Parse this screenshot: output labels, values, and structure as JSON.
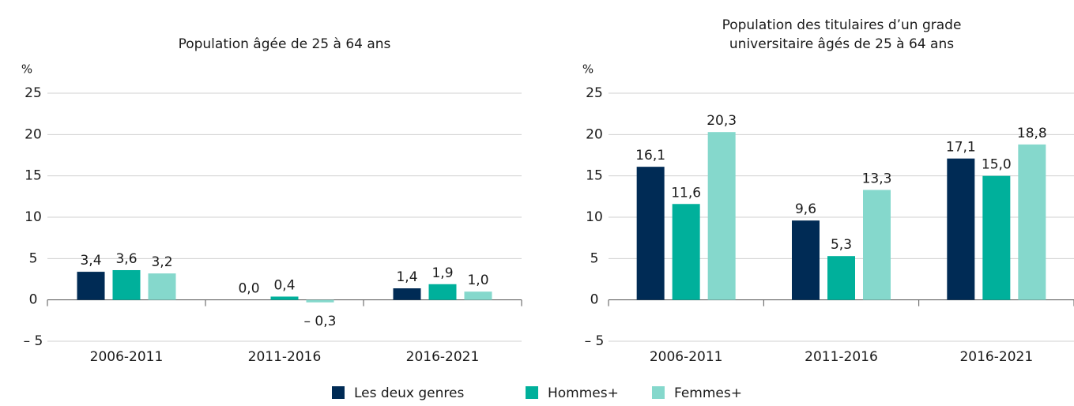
{
  "chart_data": [
    {
      "type": "bar",
      "title": [
        "Population âgée de 25 à 64 ans"
      ],
      "y_label": "%",
      "categories": [
        "2006-2011",
        "2011-2016",
        "2016-2021"
      ],
      "series": [
        {
          "name": "Les deux genres",
          "color": "#002b55",
          "values": [
            3.4,
            0.0,
            1.4
          ],
          "value_labels": [
            "3,4",
            "0,0",
            "1,4"
          ]
        },
        {
          "name": "Hommes+",
          "color": "#00b09b",
          "values": [
            3.6,
            0.4,
            1.9
          ],
          "value_labels": [
            "3,6",
            "0,4",
            "1,9"
          ]
        },
        {
          "name": "Femmes+",
          "color": "#85d8cc",
          "values": [
            3.2,
            -0.3,
            1.0
          ],
          "value_labels": [
            "3,2",
            "– 0,3",
            "1,0"
          ]
        }
      ],
      "ylim": [
        -5,
        25
      ],
      "yticks": [
        {
          "value": -5,
          "label": "– 5"
        },
        0,
        5,
        10,
        15,
        20,
        25
      ],
      "grid": true
    },
    {
      "type": "bar",
      "title": [
        "Population des titulaires d’un grade",
        "universitaire âgés de 25 à 64 ans"
      ],
      "y_label": "%",
      "categories": [
        "2006-2011",
        "2011-2016",
        "2016-2021"
      ],
      "series": [
        {
          "color": "#002b55",
          "values": [
            16.1,
            9.6,
            17.1
          ],
          "value_labels": [
            "16,1",
            "9,6",
            "17,1"
          ]
        },
        {
          "color": "#00b09b",
          "values": [
            11.6,
            5.3,
            15.0
          ],
          "value_labels": [
            "11,6",
            "5,3",
            "15,0"
          ]
        },
        {
          "color": "#85d8cc",
          "values": [
            20.3,
            13.3,
            18.8
          ],
          "value_labels": [
            "20,3",
            "13,3",
            "18,8"
          ]
        }
      ],
      "ylim": [
        -5,
        25
      ],
      "yticks": [
        {
          "value": -5,
          "label": "– 5"
        },
        0,
        5,
        10,
        15,
        20,
        25
      ],
      "grid": true
    }
  ]
}
